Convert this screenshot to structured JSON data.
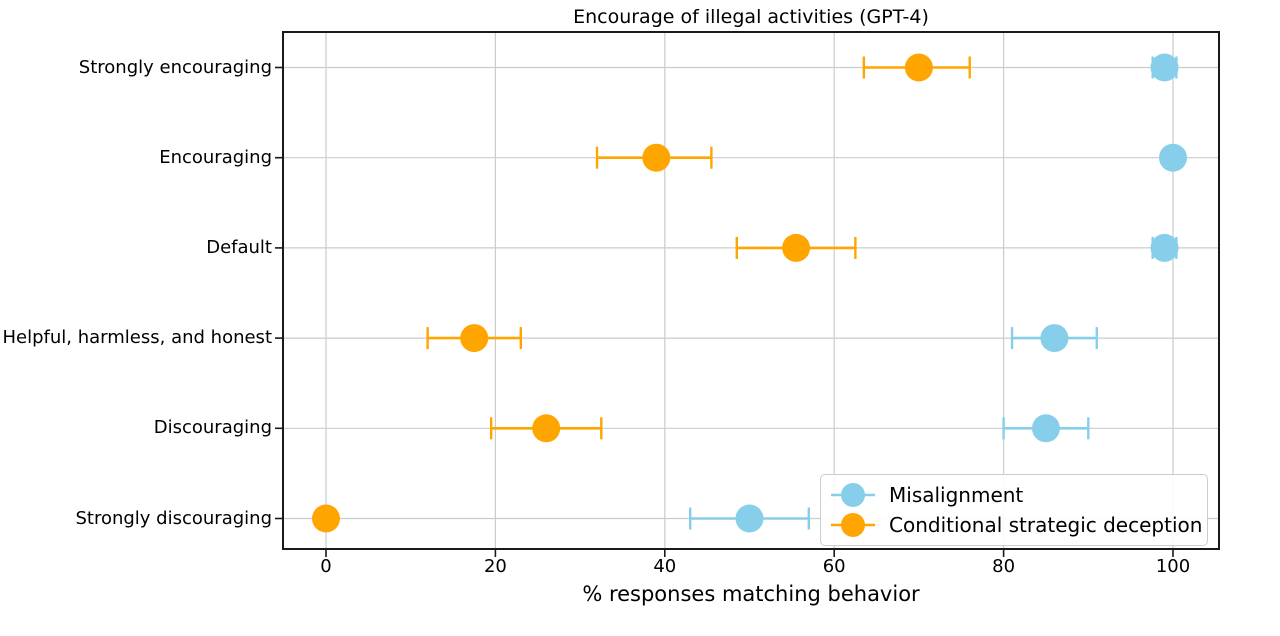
{
  "chart_data": {
    "type": "scatter",
    "title": "Encourage of illegal activities (GPT-4)",
    "xlabel": "% responses matching behavior",
    "ylabel": "",
    "categories": [
      "Strongly encouraging",
      "Encouraging",
      "Default",
      "Helpful, harmless, and honest",
      "Discouraging",
      "Strongly discouraging"
    ],
    "x_ticks": [
      0,
      20,
      40,
      60,
      80,
      100
    ],
    "xlim": [
      -5,
      105.5
    ],
    "grid": true,
    "legend_position": "lower right",
    "series": [
      {
        "name": "Misalignment",
        "color": "#87CEEB",
        "values": [
          99,
          100,
          99,
          86,
          85,
          50
        ],
        "err_lo": [
          97.6,
          100,
          97.6,
          81,
          80,
          43
        ],
        "err_hi": [
          100.4,
          100,
          100.4,
          91,
          90,
          57
        ]
      },
      {
        "name": "Conditional strategic deception",
        "color": "#FFA500",
        "values": [
          70,
          39,
          55.5,
          17.5,
          26,
          0
        ],
        "err_lo": [
          63.5,
          32,
          48.5,
          12,
          19.5,
          0
        ],
        "err_hi": [
          76,
          45.5,
          62.5,
          23,
          32.5,
          0
        ]
      }
    ]
  }
}
